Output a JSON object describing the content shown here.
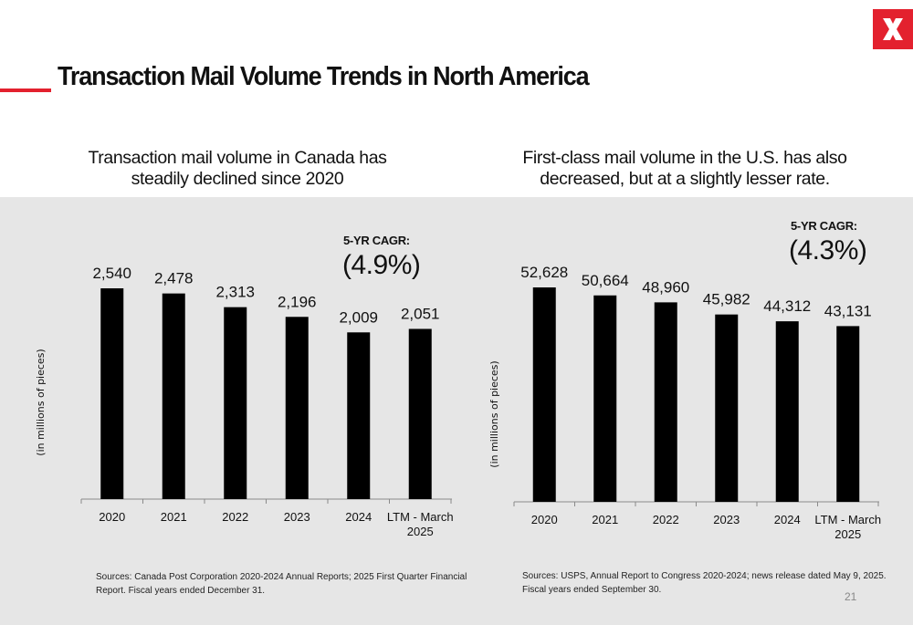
{
  "header": {
    "title": "Transaction Mail Volume Trends in North America",
    "logo_letter": "X",
    "brand_color": "#e3212e"
  },
  "left": {
    "subtitle": "Transaction mail volume in Canada has steadily declined since 2020",
    "cagr_label": "5-YR CAGR:",
    "cagr_value": "(4.9%)",
    "source": "Sources: Canada Post Corporation 2020-2024 Annual Reports; 2025 First Quarter Financial Report. Fiscal years ended December 31."
  },
  "right": {
    "subtitle": "First-class mail volume in the U.S. has also decreased, but at a slightly lesser rate.",
    "cagr_label": "5-YR CAGR:",
    "cagr_value": "(4.3%)",
    "source": "Sources: USPS, Annual Report to Congress 2020-2024; news release dated May 9, 2025. Fiscal years ended September 30."
  },
  "page_number": "21",
  "chart_data": [
    {
      "type": "bar",
      "categories": [
        "2020",
        "2021",
        "2022",
        "2023",
        "2024",
        "LTM - March 2025"
      ],
      "values": [
        2540,
        2478,
        2313,
        2196,
        2009,
        2051
      ],
      "value_labels": [
        "2,540",
        "2,478",
        "2,313",
        "2,196",
        "2,009",
        "2,051"
      ],
      "ylabel": "(in millions of pieces)",
      "ylim": [
        0,
        2540
      ],
      "bar_color": "#000000",
      "grid": false
    },
    {
      "type": "bar",
      "categories": [
        "2020",
        "2021",
        "2022",
        "2023",
        "2024",
        "LTM - March 2025"
      ],
      "values": [
        52628,
        50664,
        48960,
        45982,
        44312,
        43131
      ],
      "value_labels": [
        "52,628",
        "50,664",
        "48,960",
        "45,982",
        "44,312",
        "43,131"
      ],
      "ylabel": "(in millions of pieces)",
      "ylim": [
        0,
        52628
      ],
      "bar_color": "#000000",
      "grid": false
    }
  ]
}
